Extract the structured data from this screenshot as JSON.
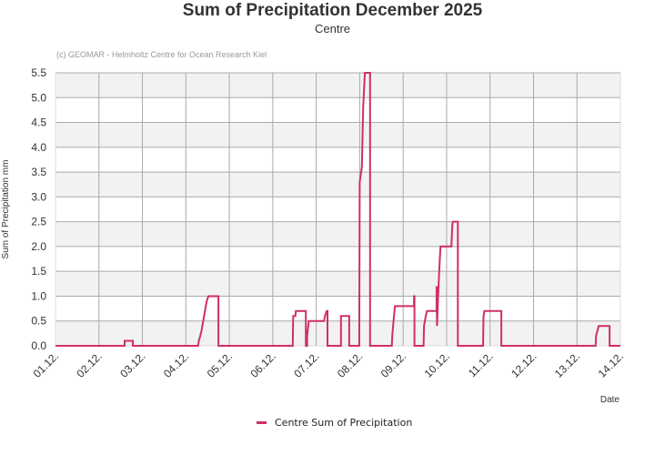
{
  "chart_data": {
    "type": "line",
    "step": true,
    "title": "Sum of Precipitation December 2025",
    "subtitle": "Centre",
    "credit": "(c) GEOMAR - Helmholtz Centre for Ocean Research Kiel",
    "xlabel": "Date",
    "ylabel": "Sum of Precipitation mm",
    "ylim": [
      0,
      5.5
    ],
    "yticks": [
      "0.0",
      "0.5",
      "1.0",
      "1.5",
      "2.0",
      "2.5",
      "3.0",
      "3.5",
      "4.0",
      "4.5",
      "5.0",
      "5.5"
    ],
    "xticks": [
      "01.12.",
      "02.12.",
      "03.12.",
      "04.12.",
      "05.12.",
      "06.12.",
      "07.12.",
      "08.12.",
      "09.12.",
      "10.12.",
      "11.12.",
      "12.12.",
      "13.12.",
      "14.12."
    ],
    "grid": true,
    "legend_position": "bottom",
    "series": [
      {
        "name": "Centre Sum of Precipitation",
        "color": "#d03060",
        "points": [
          [
            0.0,
            0.0
          ],
          [
            1.59,
            0.0
          ],
          [
            1.59,
            0.1
          ],
          [
            1.78,
            0.1
          ],
          [
            1.78,
            0.0
          ],
          [
            3.28,
            0.0
          ],
          [
            3.3,
            0.1
          ],
          [
            3.33,
            0.2
          ],
          [
            3.36,
            0.3
          ],
          [
            3.4,
            0.5
          ],
          [
            3.44,
            0.7
          ],
          [
            3.48,
            0.9
          ],
          [
            3.52,
            1.0
          ],
          [
            3.75,
            1.0
          ],
          [
            3.75,
            0.0
          ],
          [
            5.46,
            0.0
          ],
          [
            5.47,
            0.6
          ],
          [
            5.52,
            0.6
          ],
          [
            5.53,
            0.7
          ],
          [
            5.76,
            0.7
          ],
          [
            5.76,
            0.0
          ],
          [
            5.79,
            0.0
          ],
          [
            5.79,
            0.2
          ],
          [
            5.83,
            0.5
          ],
          [
            6.18,
            0.5
          ],
          [
            6.2,
            0.6
          ],
          [
            6.24,
            0.7
          ],
          [
            6.26,
            0.7
          ],
          [
            6.26,
            0.0
          ],
          [
            6.57,
            0.0
          ],
          [
            6.57,
            0.6
          ],
          [
            6.76,
            0.6
          ],
          [
            6.76,
            0.0
          ],
          [
            6.99,
            0.0
          ],
          [
            7.0,
            3.3
          ],
          [
            7.05,
            3.6
          ],
          [
            7.08,
            4.8
          ],
          [
            7.12,
            5.5
          ],
          [
            7.24,
            5.5
          ],
          [
            7.24,
            0.0
          ],
          [
            7.74,
            0.0
          ],
          [
            7.75,
            0.2
          ],
          [
            7.78,
            0.5
          ],
          [
            7.81,
            0.8
          ],
          [
            8.25,
            0.8
          ],
          [
            8.25,
            1.0
          ],
          [
            8.26,
            1.0
          ],
          [
            8.26,
            0.0
          ],
          [
            8.47,
            0.0
          ],
          [
            8.48,
            0.4
          ],
          [
            8.52,
            0.6
          ],
          [
            8.55,
            0.7
          ],
          [
            8.77,
            0.7
          ],
          [
            8.77,
            1.2
          ],
          [
            8.78,
            0.4
          ],
          [
            8.8,
            0.9
          ],
          [
            8.83,
            1.5
          ],
          [
            8.86,
            2.0
          ],
          [
            9.11,
            2.0
          ],
          [
            9.13,
            2.4
          ],
          [
            9.14,
            2.5
          ],
          [
            9.26,
            2.5
          ],
          [
            9.26,
            0.0
          ],
          [
            9.84,
            0.0
          ],
          [
            9.85,
            0.6
          ],
          [
            9.87,
            0.7
          ],
          [
            10.26,
            0.7
          ],
          [
            10.26,
            0.0
          ],
          [
            12.43,
            0.0
          ],
          [
            12.44,
            0.2
          ],
          [
            12.47,
            0.3
          ],
          [
            12.5,
            0.4
          ],
          [
            12.75,
            0.4
          ],
          [
            12.75,
            0.0
          ],
          [
            13.0,
            0.0
          ]
        ]
      }
    ]
  },
  "legend": {
    "items": [
      {
        "label": "Centre Sum of Precipitation",
        "color": "#d03060"
      }
    ]
  }
}
